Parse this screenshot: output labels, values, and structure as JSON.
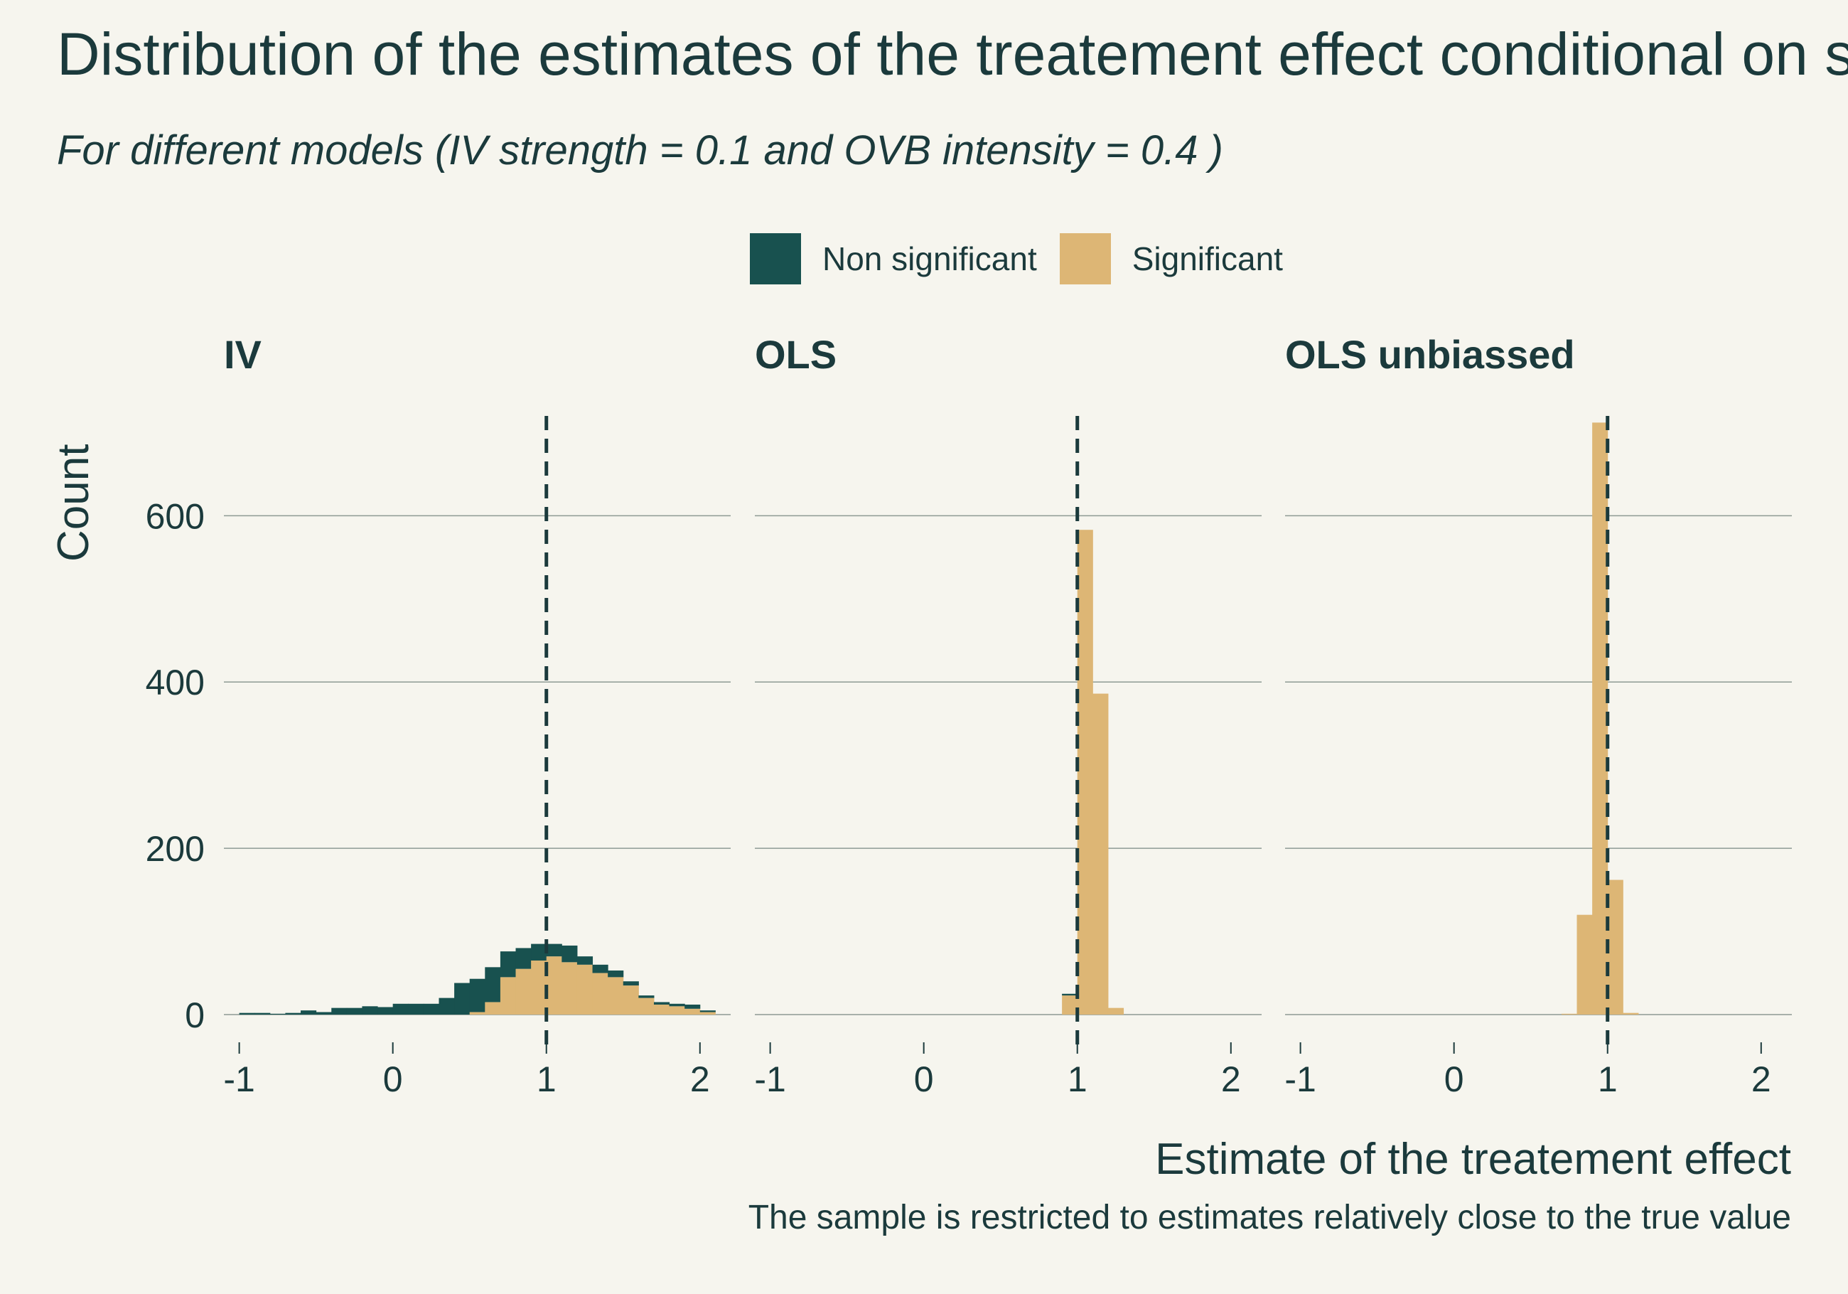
{
  "chart_data": {
    "type": "bar",
    "title": "Distribution of the estimates of the treatement effect conditional on si",
    "subtitle": "For different models (IV strength = 0.1 and OVB intensity =  0.4 )",
    "ylabel": "Count",
    "xlabel": "Estimate of the treatement effect",
    "caption": "The sample is restricted to estimates relatively close to the true value",
    "legend": {
      "position": "top",
      "items": [
        {
          "label": "Non significant",
          "color": "#18514f"
        },
        {
          "label": "Significant",
          "color": "#ddb675"
        }
      ]
    },
    "stacked": true,
    "grid": true,
    "true_value": 1,
    "xlim": [
      -1.1,
      2.2
    ],
    "ylim": [
      0,
      720
    ],
    "x_ticks": [
      "-1",
      "0",
      "1",
      "2"
    ],
    "x_tick_values": [
      -1,
      0,
      1,
      2
    ],
    "y_ticks": [
      "0",
      "200",
      "400",
      "600"
    ],
    "y_tick_values": [
      0,
      200,
      400,
      600
    ],
    "panels": [
      {
        "name": "IV",
        "bin_width": 0.1,
        "bin_centers": [
          -0.95,
          -0.85,
          -0.75,
          -0.65,
          -0.55,
          -0.45,
          -0.35,
          -0.25,
          -0.15,
          -0.05,
          0.05,
          0.15,
          0.25,
          0.35,
          0.45,
          0.55,
          0.65,
          0.75,
          0.85,
          0.95,
          1.05,
          1.15,
          1.25,
          1.35,
          1.45,
          1.55,
          1.65,
          1.75,
          1.85,
          1.95,
          2.05
        ],
        "series": [
          {
            "name": "Non significant",
            "values": [
              2,
              2,
              1,
              2,
              5,
              3,
              8,
              8,
              10,
              9,
              13,
              13,
              13,
              20,
              38,
              40,
              42,
              31,
              25,
              20,
              15,
              20,
              10,
              10,
              8,
              5,
              3,
              3,
              3,
              5,
              2
            ]
          },
          {
            "name": "Significant",
            "values": [
              0,
              0,
              0,
              0,
              0,
              0,
              0,
              0,
              0,
              0,
              0,
              0,
              0,
              0,
              0,
              3,
              15,
              45,
              55,
              65,
              70,
              63,
              60,
              50,
              45,
              35,
              20,
              12,
              10,
              7,
              3
            ]
          }
        ]
      },
      {
        "name": "OLS",
        "bin_width": 0.1,
        "bin_centers": [
          0.95,
          1.05,
          1.15,
          1.25
        ],
        "series": [
          {
            "name": "Non significant",
            "values": [
              2,
              0,
              0,
              0
            ]
          },
          {
            "name": "Significant",
            "values": [
              23,
              583,
              386,
              8
            ]
          }
        ]
      },
      {
        "name": "OLS unbiassed",
        "bin_width": 0.1,
        "bin_centers": [
          0.75,
          0.85,
          0.95,
          1.05,
          1.15
        ],
        "series": [
          {
            "name": "Non significant",
            "values": [
              0,
              0,
              0,
              0,
              0
            ]
          },
          {
            "name": "Significant",
            "values": [
              1,
              120,
              712,
              162,
              2
            ]
          }
        ]
      }
    ]
  }
}
